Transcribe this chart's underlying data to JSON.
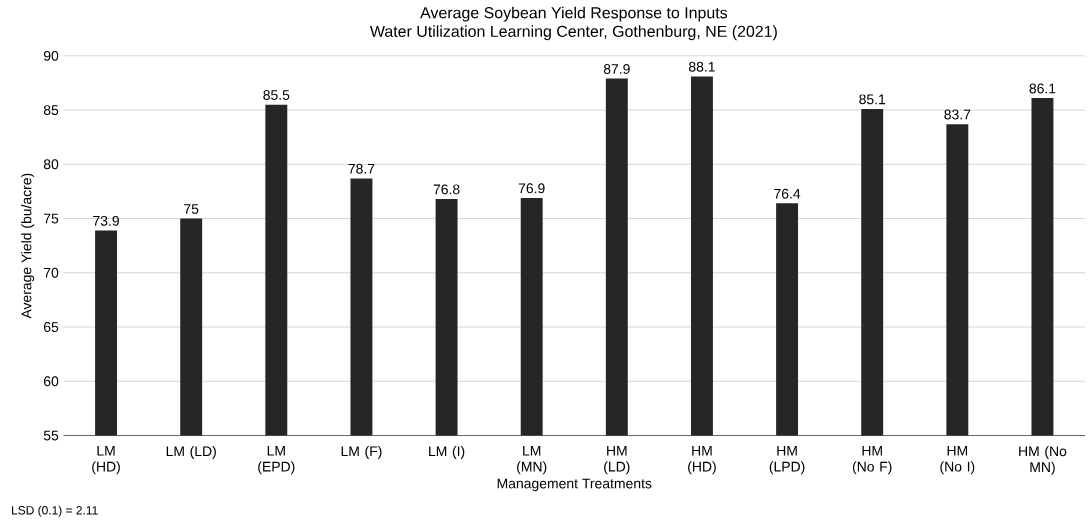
{
  "chart_data": {
    "type": "bar",
    "title": "Average Soybean Yield Response to Inputs",
    "subtitle": "Water Utilization Learning Center, Gothenburg, NE (2021)",
    "xlabel": "Management Treatments",
    "ylabel": "Average Yield (bu/acre)",
    "categories": [
      "LM (HD)",
      "LM (LD)",
      "LM (EPD)",
      "LM (F)",
      "LM (I)",
      "LM (MN)",
      "HM (LD)",
      "HM (HD)",
      "HM (LPD)",
      "HM (No F)",
      "HM (No I)",
      "HM (No MN)"
    ],
    "values": [
      73.9,
      75,
      85.5,
      78.7,
      76.8,
      76.9,
      87.9,
      88.1,
      76.4,
      85.1,
      83.7,
      86.1
    ],
    "color": "#262626",
    "ylim": [
      55,
      90
    ],
    "yticks": [
      55,
      60,
      65,
      70,
      75,
      80,
      85,
      90
    ],
    "grid": "y",
    "data_labels": true,
    "annotations": [
      "LSD (0.1) = 2.11"
    ]
  }
}
